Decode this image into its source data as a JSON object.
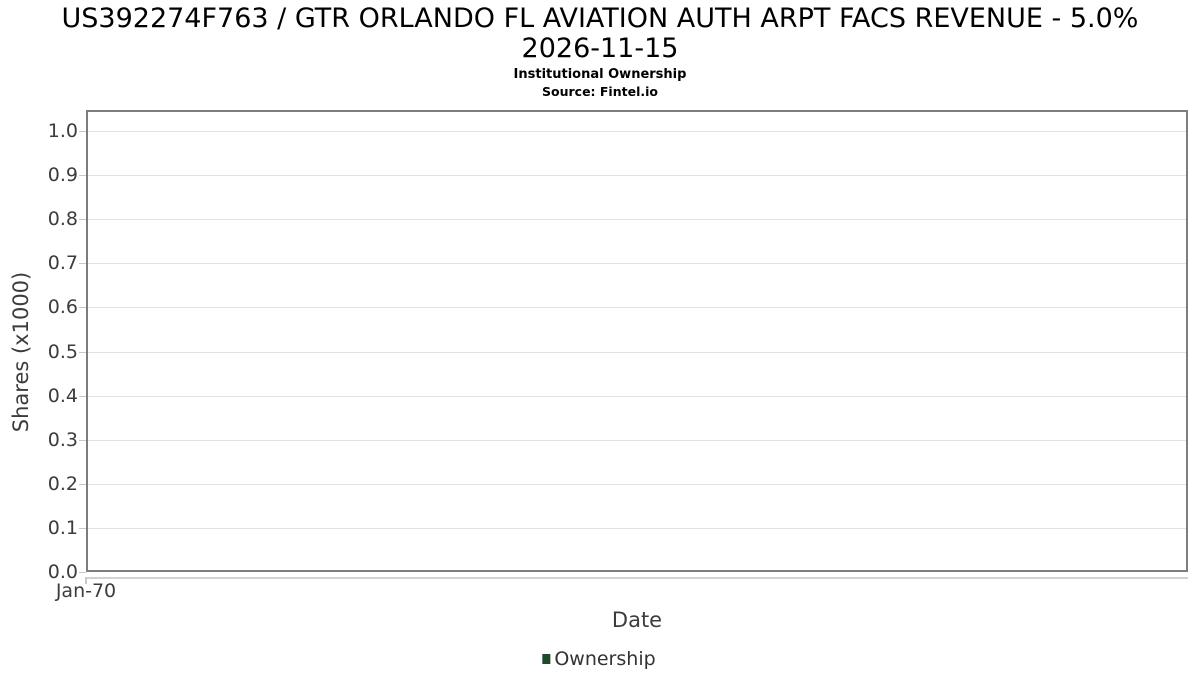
{
  "header": {
    "title_line1": "US392274F763 / GTR ORLANDO FL AVIATION AUTH ARPT FACS REVENUE - 5.0%",
    "title_line2": "2026-11-15",
    "subtitle": "Institutional Ownership",
    "source": "Source: Fintel.io"
  },
  "chart_data": {
    "type": "line",
    "title": "US392274F763 / GTR ORLANDO FL AVIATION AUTH ARPT FACS REVENUE - 5.0% 2026-11-15",
    "subtitle": "Institutional Ownership",
    "source": "Source: Fintel.io",
    "xlabel": "Date",
    "ylabel": "Shares (x1000)",
    "x_ticks": [
      "Jan-70"
    ],
    "y_ticks": [
      "0.0",
      "0.1",
      "0.2",
      "0.3",
      "0.4",
      "0.5",
      "0.6",
      "0.7",
      "0.8",
      "0.9",
      "1.0"
    ],
    "ylim": [
      0.0,
      1.0
    ],
    "grid": "horizontal",
    "legend": {
      "position": "bottom-center",
      "entries": [
        {
          "label": "Ownership",
          "color": "#1e4a29"
        }
      ]
    },
    "series": [
      {
        "name": "Ownership",
        "color": "#1e4a29",
        "x": [],
        "values": []
      }
    ]
  },
  "colors": {
    "background": "#ffffff",
    "plot_border": "#7d7d7d",
    "gridline": "#e2e2e2",
    "axis_line": "#cccccc",
    "tick_label": "#3c3c3c",
    "axis_title": "#3c3c3c",
    "title_text": "#000000",
    "legend_marker": "#1e4a29"
  }
}
